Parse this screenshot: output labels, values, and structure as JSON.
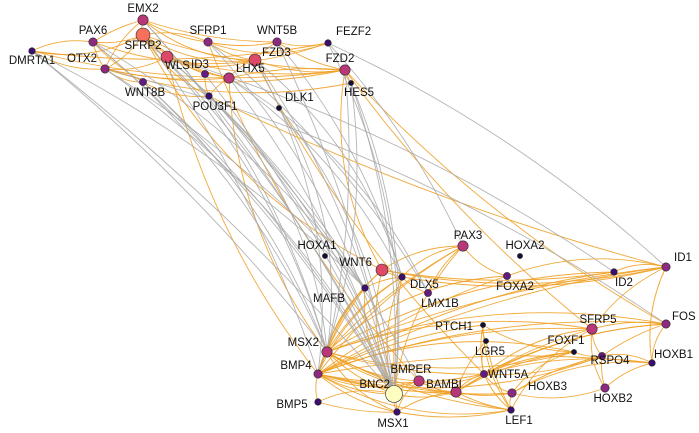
{
  "colors": {
    "edge_orange": "#f0a023",
    "edge_gray": "#a8a8a8",
    "level_colors": [
      "#150e37",
      "#3b0f70",
      "#641a80",
      "#8c2981",
      "#b73779",
      "#de4968",
      "#f7705c",
      "#fe9f6d",
      "#fcfdbf"
    ]
  },
  "network": {
    "nodes": [
      {
        "id": "EMX2",
        "label": "EMX2",
        "level": 4
      },
      {
        "id": "PAX6",
        "label": "PAX6",
        "level": 3
      },
      {
        "id": "SFRP1",
        "label": "SFRP1",
        "level": 3
      },
      {
        "id": "WNT5B",
        "label": "WNT5B",
        "level": 3
      },
      {
        "id": "FEZF2",
        "label": "FEZF2",
        "level": 1
      },
      {
        "id": "DMRTA1",
        "label": "DMRTA1",
        "level": 1
      },
      {
        "id": "OTX2",
        "label": "OTX2",
        "level": 3
      },
      {
        "id": "SFRP2",
        "label": "SFRP2",
        "level": 6
      },
      {
        "id": "FZD3",
        "label": "FZD3",
        "level": 5
      },
      {
        "id": "FZD2",
        "label": "FZD2",
        "level": 4
      },
      {
        "id": "WLS",
        "label": "WLS",
        "level": 5
      },
      {
        "id": "ID3",
        "label": "ID3",
        "level": 2
      },
      {
        "id": "LHX5",
        "label": "LHX5",
        "level": 4
      },
      {
        "id": "HES5",
        "label": "HES5",
        "level": 0
      },
      {
        "id": "WNT8B",
        "label": "WNT8B",
        "level": 2
      },
      {
        "id": "POU3F1",
        "label": "POU3F1",
        "level": 1
      },
      {
        "id": "DLK1",
        "label": "DLK1",
        "level": 0
      },
      {
        "id": "PAX3",
        "label": "PAX3",
        "level": 4
      },
      {
        "id": "HOXA2",
        "label": "HOXA2",
        "level": 0
      },
      {
        "id": "HOXA1",
        "label": "HOXA1",
        "level": 0
      },
      {
        "id": "WNT6",
        "label": "WNT6",
        "level": 5
      },
      {
        "id": "DLX5",
        "label": "DLX5",
        "level": 1
      },
      {
        "id": "ID1",
        "label": "ID1",
        "level": 3
      },
      {
        "id": "FOXA2",
        "label": "FOXA2",
        "level": 2
      },
      {
        "id": "ID2",
        "label": "ID2",
        "level": 1
      },
      {
        "id": "MAFB",
        "label": "MAFB",
        "level": 1
      },
      {
        "id": "LMX1B",
        "label": "LMX1B",
        "level": 2
      },
      {
        "id": "FOS",
        "label": "FOS",
        "level": 3
      },
      {
        "id": "SFRP5",
        "label": "SFRP5",
        "level": 4
      },
      {
        "id": "PTCH1",
        "label": "PTCH1",
        "level": 0
      },
      {
        "id": "MSX2",
        "label": "MSX2",
        "level": 4
      },
      {
        "id": "LGR5",
        "label": "LGR5",
        "level": 0
      },
      {
        "id": "FOXF1",
        "label": "FOXF1",
        "level": 0
      },
      {
        "id": "HOXB1",
        "label": "HOXB1",
        "level": 1
      },
      {
        "id": "BMP4",
        "label": "BMP4",
        "level": 3
      },
      {
        "id": "BMPER",
        "label": "BMPER",
        "level": 4
      },
      {
        "id": "WNT5A",
        "label": "WNT5A",
        "level": 2
      },
      {
        "id": "RSPO4",
        "label": "RSPO4",
        "level": 2
      },
      {
        "id": "BNC2",
        "label": "BNC2",
        "level": 8
      },
      {
        "id": "BAMBI",
        "label": "BAMBI",
        "level": 4
      },
      {
        "id": "HOXB3",
        "label": "HOXB3",
        "level": 3
      },
      {
        "id": "HOXB2",
        "label": "HOXB2",
        "level": 3
      },
      {
        "id": "BMP5",
        "label": "BMP5",
        "level": 1
      },
      {
        "id": "MSX1",
        "label": "MSX1",
        "level": 1
      },
      {
        "id": "LEF1",
        "label": "LEF1",
        "level": 1
      }
    ],
    "edges_orange": [
      [
        "EMX2",
        "PAX6"
      ],
      [
        "EMX2",
        "SFRP1"
      ],
      [
        "EMX2",
        "OTX2"
      ],
      [
        "EMX2",
        "SFRP2"
      ],
      [
        "EMX2",
        "FZD3"
      ],
      [
        "EMX2",
        "WNT5B"
      ],
      [
        "PAX6",
        "OTX2"
      ],
      [
        "PAX6",
        "SFRP2"
      ],
      [
        "PAX6",
        "DMRTA1"
      ],
      [
        "PAX6",
        "FEZF2"
      ],
      [
        "PAX6",
        "WNT8B"
      ],
      [
        "SFRP1",
        "WNT5B"
      ],
      [
        "SFRP1",
        "FZD3"
      ],
      [
        "SFRP1",
        "SFRP2"
      ],
      [
        "SFRP1",
        "FEZF2"
      ],
      [
        "WNT5B",
        "FZD3"
      ],
      [
        "WNT5B",
        "FZD2"
      ],
      [
        "WNT5B",
        "FEZF2"
      ],
      [
        "DMRTA1",
        "OTX2"
      ],
      [
        "DMRTA1",
        "SFRP2"
      ],
      [
        "DMRTA1",
        "FEZF2"
      ],
      [
        "DMRTA1",
        "FZD2"
      ],
      [
        "OTX2",
        "SFRP2"
      ],
      [
        "OTX2",
        "WLS"
      ],
      [
        "OTX2",
        "WNT8B"
      ],
      [
        "OTX2",
        "LHX5"
      ],
      [
        "OTX2",
        "FZD2"
      ],
      [
        "OTX2",
        "HES5"
      ],
      [
        "SFRP2",
        "WLS"
      ],
      [
        "SFRP2",
        "FZD3"
      ],
      [
        "SFRP2",
        "FZD2"
      ],
      [
        "SFRP2",
        "ID3"
      ],
      [
        "SFRP2",
        "LHX5"
      ],
      [
        "SFRP2",
        "POU3F1"
      ],
      [
        "WLS",
        "FZD3"
      ],
      [
        "WLS",
        "LHX5"
      ],
      [
        "WLS",
        "FZD2"
      ],
      [
        "FZD3",
        "FZD2"
      ],
      [
        "FZD3",
        "LHX5"
      ],
      [
        "FZD2",
        "HES5"
      ],
      [
        "FZD2",
        "LHX5"
      ],
      [
        "LHX5",
        "POU3F1"
      ],
      [
        "ID3",
        "POU3F1"
      ],
      [
        "WNT8B",
        "POU3F1"
      ],
      [
        "SFRP2",
        "WNT6"
      ],
      [
        "FZD2",
        "SFRP5"
      ],
      [
        "FZD3",
        "WNT5A"
      ],
      [
        "WLS",
        "BMP4"
      ],
      [
        "LHX5",
        "MSX2"
      ],
      [
        "FZD2",
        "WNT6"
      ],
      [
        "POU3F1",
        "ID1"
      ],
      [
        "FZD2",
        "FOS"
      ],
      [
        "SFRP1",
        "BMPER"
      ],
      [
        "PAX3",
        "WNT6"
      ],
      [
        "PAX3",
        "DLX5"
      ],
      [
        "PAX3",
        "MSX2"
      ],
      [
        "PAX3",
        "BMP4"
      ],
      [
        "PAX3",
        "LMX1B"
      ],
      [
        "PAX3",
        "BNC2"
      ],
      [
        "PAX3",
        "FOXA2"
      ],
      [
        "WNT6",
        "DLX5"
      ],
      [
        "WNT6",
        "ID1"
      ],
      [
        "WNT6",
        "MSX2"
      ],
      [
        "WNT6",
        "BMP4"
      ],
      [
        "WNT6",
        "BNC2"
      ],
      [
        "WNT6",
        "ID2"
      ],
      [
        "DLX5",
        "MAFB"
      ],
      [
        "DLX5",
        "MSX2"
      ],
      [
        "DLX5",
        "BMP4"
      ],
      [
        "DLX5",
        "BNC2"
      ],
      [
        "DLX5",
        "MSX1"
      ],
      [
        "DLX5",
        "ID1"
      ],
      [
        "DLX5",
        "LMX1B"
      ],
      [
        "ID1",
        "FOXA2"
      ],
      [
        "ID1",
        "ID2"
      ],
      [
        "ID1",
        "MSX2"
      ],
      [
        "ID1",
        "BMP4"
      ],
      [
        "ID1",
        "SFRP5"
      ],
      [
        "ID1",
        "HOXB1"
      ],
      [
        "FOXA2",
        "MSX2"
      ],
      [
        "FOXA2",
        "BMP4"
      ],
      [
        "ID2",
        "BMP4"
      ],
      [
        "ID2",
        "MSX2"
      ],
      [
        "MAFB",
        "MSX2"
      ],
      [
        "MAFB",
        "BNC2"
      ],
      [
        "MAFB",
        "BMP4"
      ],
      [
        "FOS",
        "SFRP5"
      ],
      [
        "FOS",
        "BMP4"
      ],
      [
        "FOS",
        "MSX2"
      ],
      [
        "FOS",
        "HOXB1"
      ],
      [
        "FOS",
        "RSPO4"
      ],
      [
        "FOS",
        "WNT5A"
      ],
      [
        "FOS",
        "BAMBI"
      ],
      [
        "SFRP5",
        "WNT5A"
      ],
      [
        "SFRP5",
        "RSPO4"
      ],
      [
        "SFRP5",
        "BAMBI"
      ],
      [
        "SFRP5",
        "BMP4"
      ],
      [
        "SFRP5",
        "MSX2"
      ],
      [
        "SFRP5",
        "LEF1"
      ],
      [
        "SFRP5",
        "HOXB2"
      ],
      [
        "MSX2",
        "BMP4"
      ],
      [
        "MSX2",
        "BNC2"
      ],
      [
        "MSX2",
        "BMPER"
      ],
      [
        "MSX2",
        "BAMBI"
      ],
      [
        "MSX2",
        "MSX1"
      ],
      [
        "MSX2",
        "WNT5A"
      ],
      [
        "MSX2",
        "LEF1"
      ],
      [
        "MSX2",
        "FOXF1"
      ],
      [
        "MSX2",
        "HOXB3"
      ],
      [
        "PTCH1",
        "LGR5"
      ],
      [
        "PTCH1",
        "BMP4"
      ],
      [
        "PTCH1",
        "WNT5A"
      ],
      [
        "PTCH1",
        "FOXF1"
      ],
      [
        "PTCH1",
        "LEF1"
      ],
      [
        "LGR5",
        "WNT5A"
      ],
      [
        "LGR5",
        "LEF1"
      ],
      [
        "LGR5",
        "BAMBI"
      ],
      [
        "FOXF1",
        "RSPO4"
      ],
      [
        "FOXF1",
        "BMP4"
      ],
      [
        "FOXF1",
        "HOXB3"
      ],
      [
        "FOXF1",
        "WNT5A"
      ],
      [
        "FOXF1",
        "BAMBI"
      ],
      [
        "HOXB1",
        "HOXB2"
      ],
      [
        "HOXB1",
        "HOXB3"
      ],
      [
        "HOXB1",
        "RSPO4"
      ],
      [
        "HOXB1",
        "BMP4"
      ],
      [
        "HOXB1",
        "WNT5A"
      ],
      [
        "BMP4",
        "BNC2"
      ],
      [
        "BMP4",
        "BMP5"
      ],
      [
        "BMP4",
        "BMPER"
      ],
      [
        "BMP4",
        "BAMBI"
      ],
      [
        "BMP4",
        "WNT5A"
      ],
      [
        "BMP4",
        "MSX1"
      ],
      [
        "BMP4",
        "RSPO4"
      ],
      [
        "BMP4",
        "LEF1"
      ],
      [
        "BMP4",
        "HOXB3"
      ],
      [
        "BMPER",
        "BNC2"
      ],
      [
        "BMPER",
        "BAMBI"
      ],
      [
        "BMPER",
        "WNT5A"
      ],
      [
        "BMPER",
        "MSX1"
      ],
      [
        "BMPER",
        "LEF1"
      ],
      [
        "WNT5A",
        "RSPO4"
      ],
      [
        "WNT5A",
        "LEF1"
      ],
      [
        "WNT5A",
        "BAMBI"
      ],
      [
        "WNT5A",
        "HOXB3"
      ],
      [
        "RSPO4",
        "HOXB3"
      ],
      [
        "RSPO4",
        "HOXB2"
      ],
      [
        "BNC2",
        "BAMBI"
      ],
      [
        "BNC2",
        "MSX1"
      ],
      [
        "BNC2",
        "BMP5"
      ],
      [
        "BAMBI",
        "LEF1"
      ],
      [
        "BAMBI",
        "HOXB3"
      ],
      [
        "BAMBI",
        "MSX1"
      ],
      [
        "HOXB3",
        "HOXB2"
      ],
      [
        "HOXB3",
        "LEF1"
      ],
      [
        "BMP5",
        "MSX1"
      ],
      [
        "MSX1",
        "LEF1"
      ]
    ],
    "edges_gray": [
      [
        "DMRTA1",
        "BNC2"
      ],
      [
        "DMRTA1",
        "MAFB"
      ],
      [
        "PAX6",
        "BNC2"
      ],
      [
        "PAX6",
        "MSX2"
      ],
      [
        "OTX2",
        "BNC2"
      ],
      [
        "OTX2",
        "MAFB"
      ],
      [
        "EMX2",
        "BNC2"
      ],
      [
        "SFRP2",
        "BNC2"
      ],
      [
        "SFRP2",
        "MSX2"
      ],
      [
        "SFRP1",
        "BNC2"
      ],
      [
        "WNT5B",
        "BNC2"
      ],
      [
        "WNT5B",
        "DLX5"
      ],
      [
        "FZD3",
        "BNC2"
      ],
      [
        "FZD3",
        "DLX5"
      ],
      [
        "WLS",
        "BNC2"
      ],
      [
        "WLS",
        "MAFB"
      ],
      [
        "WNT8B",
        "BNC2"
      ],
      [
        "WNT8B",
        "MSX2"
      ],
      [
        "POU3F1",
        "BNC2"
      ],
      [
        "POU3F1",
        "MSX2"
      ],
      [
        "ID3",
        "BNC2"
      ],
      [
        "LHX5",
        "BNC2"
      ],
      [
        "LHX5",
        "DLX5"
      ],
      [
        "FZD2",
        "BNC2"
      ],
      [
        "FEZF2",
        "BNC2"
      ],
      [
        "FEZF2",
        "PAX3"
      ],
      [
        "HES5",
        "BNC2"
      ],
      [
        "HES5",
        "BMP4"
      ],
      [
        "DLK1",
        "BNC2"
      ],
      [
        "DLK1",
        "MSX2"
      ],
      [
        "FZD2",
        "MSX2"
      ],
      [
        "SFRP2",
        "BMP4"
      ],
      [
        "PAX6",
        "MAFB"
      ],
      [
        "EMX2",
        "MSX2"
      ],
      [
        "FZD3",
        "BMP4"
      ],
      [
        "DMRTA1",
        "MSX2"
      ],
      [
        "FEZF2",
        "ID1"
      ],
      [
        "WLS",
        "ID2"
      ],
      [
        "LHX5",
        "LMX1B"
      ],
      [
        "OTX2",
        "FOS"
      ],
      [
        "POU3F1",
        "BMPER"
      ],
      [
        "SFRP1",
        "LMX1B"
      ]
    ]
  }
}
